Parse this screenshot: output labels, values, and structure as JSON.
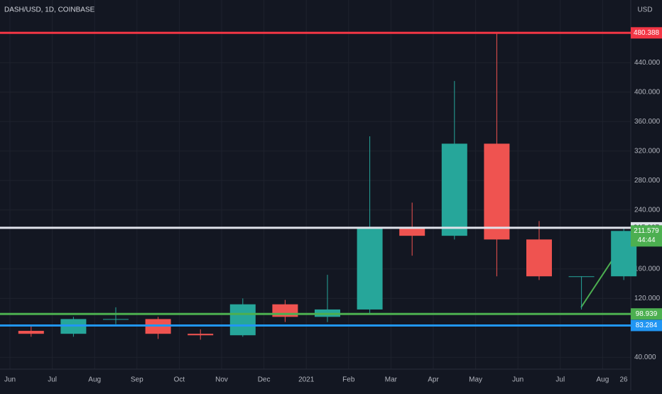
{
  "chart_data": {
    "type": "candlestick",
    "title": "DASH/USD, 1D, COINBASE",
    "currency": "USD",
    "categories": [
      "Jun",
      "Jul",
      "Aug",
      "Sep",
      "Oct",
      "Nov",
      "Dec",
      "2021",
      "Feb",
      "Mar",
      "Apr",
      "May",
      "Jun",
      "Jul",
      "Aug"
    ],
    "x_end_label": "26",
    "open": [
      76,
      72,
      92,
      92,
      72,
      70,
      112,
      95,
      105,
      215,
      205,
      330,
      200,
      150,
      150
    ],
    "high": [
      82,
      95,
      108,
      95,
      78,
      120,
      118,
      152,
      340,
      250,
      415,
      480,
      225,
      150,
      215
    ],
    "low": [
      68,
      68,
      85,
      65,
      64,
      68,
      88,
      88,
      100,
      178,
      200,
      150,
      145,
      105,
      145
    ],
    "close": [
      72,
      92,
      92,
      72,
      70,
      112,
      95,
      105,
      215,
      205,
      330,
      200,
      150,
      150,
      211.579
    ],
    "up_color": "#26a69a",
    "down_color": "#ef5350",
    "ylim": [
      24,
      525
    ],
    "yticks": [
      {
        "value": 40,
        "label": "40.000"
      },
      {
        "value": 120,
        "label": "120.000"
      },
      {
        "value": 160,
        "label": "160.000"
      },
      {
        "value": 240,
        "label": "240.000"
      },
      {
        "value": 280,
        "label": "280.000"
      },
      {
        "value": 320,
        "label": "320.000"
      },
      {
        "value": 360,
        "label": "360.000"
      },
      {
        "value": 400,
        "label": "400.000"
      },
      {
        "value": 440,
        "label": "440.000"
      }
    ],
    "grid": true,
    "levels": [
      {
        "value": 480.388,
        "color": "#f23645",
        "text_color": "#ffffff"
      },
      {
        "value": 215.827,
        "color": "#e0e3eb",
        "text_color": "#131722"
      },
      {
        "value": 98.939,
        "color": "#4caf50",
        "text_color": "#ffffff"
      },
      {
        "value": 83.284,
        "color": "#2196f3",
        "text_color": "#ffffff"
      }
    ],
    "last_price": {
      "value": 211.579,
      "color": "#4caf50",
      "countdown": "44:44"
    }
  }
}
